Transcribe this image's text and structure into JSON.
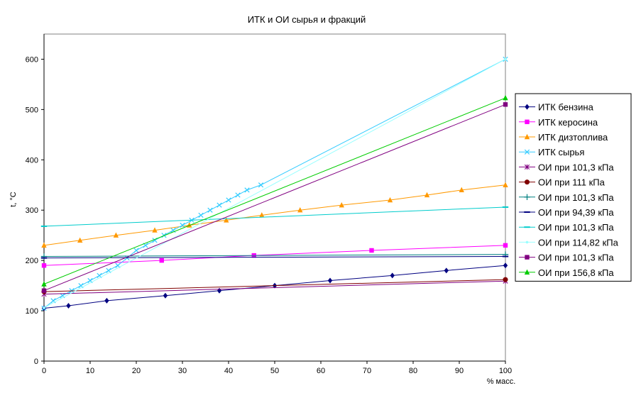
{
  "chart_data": {
    "type": "line",
    "title": "ИТК и ОИ сырья и фракций",
    "xlabel": "% масс.",
    "ylabel": "t, °C",
    "xlim": [
      0,
      100
    ],
    "ylim": [
      0,
      650
    ],
    "xticks": [
      0,
      10,
      20,
      30,
      40,
      50,
      60,
      70,
      80,
      90,
      100
    ],
    "yticks": [
      0,
      100,
      200,
      300,
      400,
      500,
      600
    ],
    "grid": false,
    "legend_position": "right",
    "series": [
      {
        "name": "ИТК бензина",
        "color": "#000080",
        "marker": "diamond",
        "points": [
          [
            0,
            105
          ],
          [
            5.3,
            110
          ],
          [
            13.6,
            120
          ],
          [
            26.3,
            130
          ],
          [
            38,
            140
          ],
          [
            50,
            150
          ],
          [
            62,
            160
          ],
          [
            75.5,
            170
          ],
          [
            87.2,
            180
          ],
          [
            100,
            190
          ]
        ]
      },
      {
        "name": "ИТК керосина",
        "color": "#ff00ff",
        "marker": "square",
        "points": [
          [
            0,
            190
          ],
          [
            25.5,
            200
          ],
          [
            45.5,
            210
          ],
          [
            71,
            220
          ],
          [
            100,
            230
          ]
        ]
      },
      {
        "name": " ИТК дизтоплива",
        "color": "#ff9900",
        "marker": "triangle",
        "points": [
          [
            0,
            230
          ],
          [
            7.8,
            240
          ],
          [
            15.6,
            250
          ],
          [
            24,
            260
          ],
          [
            31.5,
            270
          ],
          [
            39.5,
            280
          ],
          [
            47.2,
            290
          ],
          [
            55.5,
            300
          ],
          [
            64.5,
            310
          ],
          [
            75,
            320
          ],
          [
            83,
            330
          ],
          [
            90.5,
            340
          ],
          [
            100,
            350
          ]
        ]
      },
      {
        "name": "ИТК сырья",
        "color": "#33ccff",
        "marker": "x",
        "points": [
          [
            0,
            105
          ],
          [
            2,
            120
          ],
          [
            4,
            130
          ],
          [
            6,
            140
          ],
          [
            8,
            150
          ],
          [
            10,
            160
          ],
          [
            12,
            170
          ],
          [
            14,
            180
          ],
          [
            16,
            190
          ],
          [
            18,
            205
          ],
          [
            20,
            220
          ],
          [
            22,
            230
          ],
          [
            24,
            240
          ],
          [
            26,
            250
          ],
          [
            28,
            260
          ],
          [
            30,
            270
          ],
          [
            32,
            280
          ],
          [
            34,
            290
          ],
          [
            36,
            300
          ],
          [
            38,
            310
          ],
          [
            40,
            320
          ],
          [
            42,
            330
          ],
          [
            44,
            340
          ],
          [
            47,
            350
          ],
          [
            100,
            600
          ]
        ]
      },
      {
        "name": "ОИ при 101,3 кПа",
        "color": "#800080",
        "marker": "star",
        "points": [
          [
            0,
            133
          ],
          [
            100,
            159
          ]
        ]
      },
      {
        "name": "ОИ при 111 кПа",
        "color": "#800000",
        "marker": "circle",
        "points": [
          [
            0,
            138
          ],
          [
            100,
            162
          ]
        ]
      },
      {
        "name": "ОИ при 101,3 кПа",
        "color": "#008080",
        "marker": "plus",
        "points": [
          [
            0,
            208
          ],
          [
            100,
            212
          ]
        ]
      },
      {
        "name": "ОИ при 94,39 кПа",
        "color": "#000080",
        "marker": "dash",
        "points": [
          [
            0,
            205
          ],
          [
            100,
            208
          ]
        ]
      },
      {
        "name": "ОИ при 101,3 кПа",
        "color": "#00cccc",
        "marker": "dash",
        "points": [
          [
            0,
            268
          ],
          [
            100,
            306
          ]
        ]
      },
      {
        "name": "ОИ при 114,82 кПа",
        "color": "#99ffff",
        "marker": "dot",
        "points": [
          [
            0,
            106
          ],
          [
            100,
            600
          ]
        ]
      },
      {
        "name": "ОИ при 101,3 кПа",
        "color": "#800080",
        "marker": "square-filled",
        "points": [
          [
            0,
            140
          ],
          [
            100,
            510
          ]
        ]
      },
      {
        "name": "ОИ при 156,8 кПа",
        "color": "#00cc00",
        "marker": "triangle",
        "points": [
          [
            0,
            153
          ],
          [
            100,
            523
          ]
        ]
      }
    ]
  }
}
